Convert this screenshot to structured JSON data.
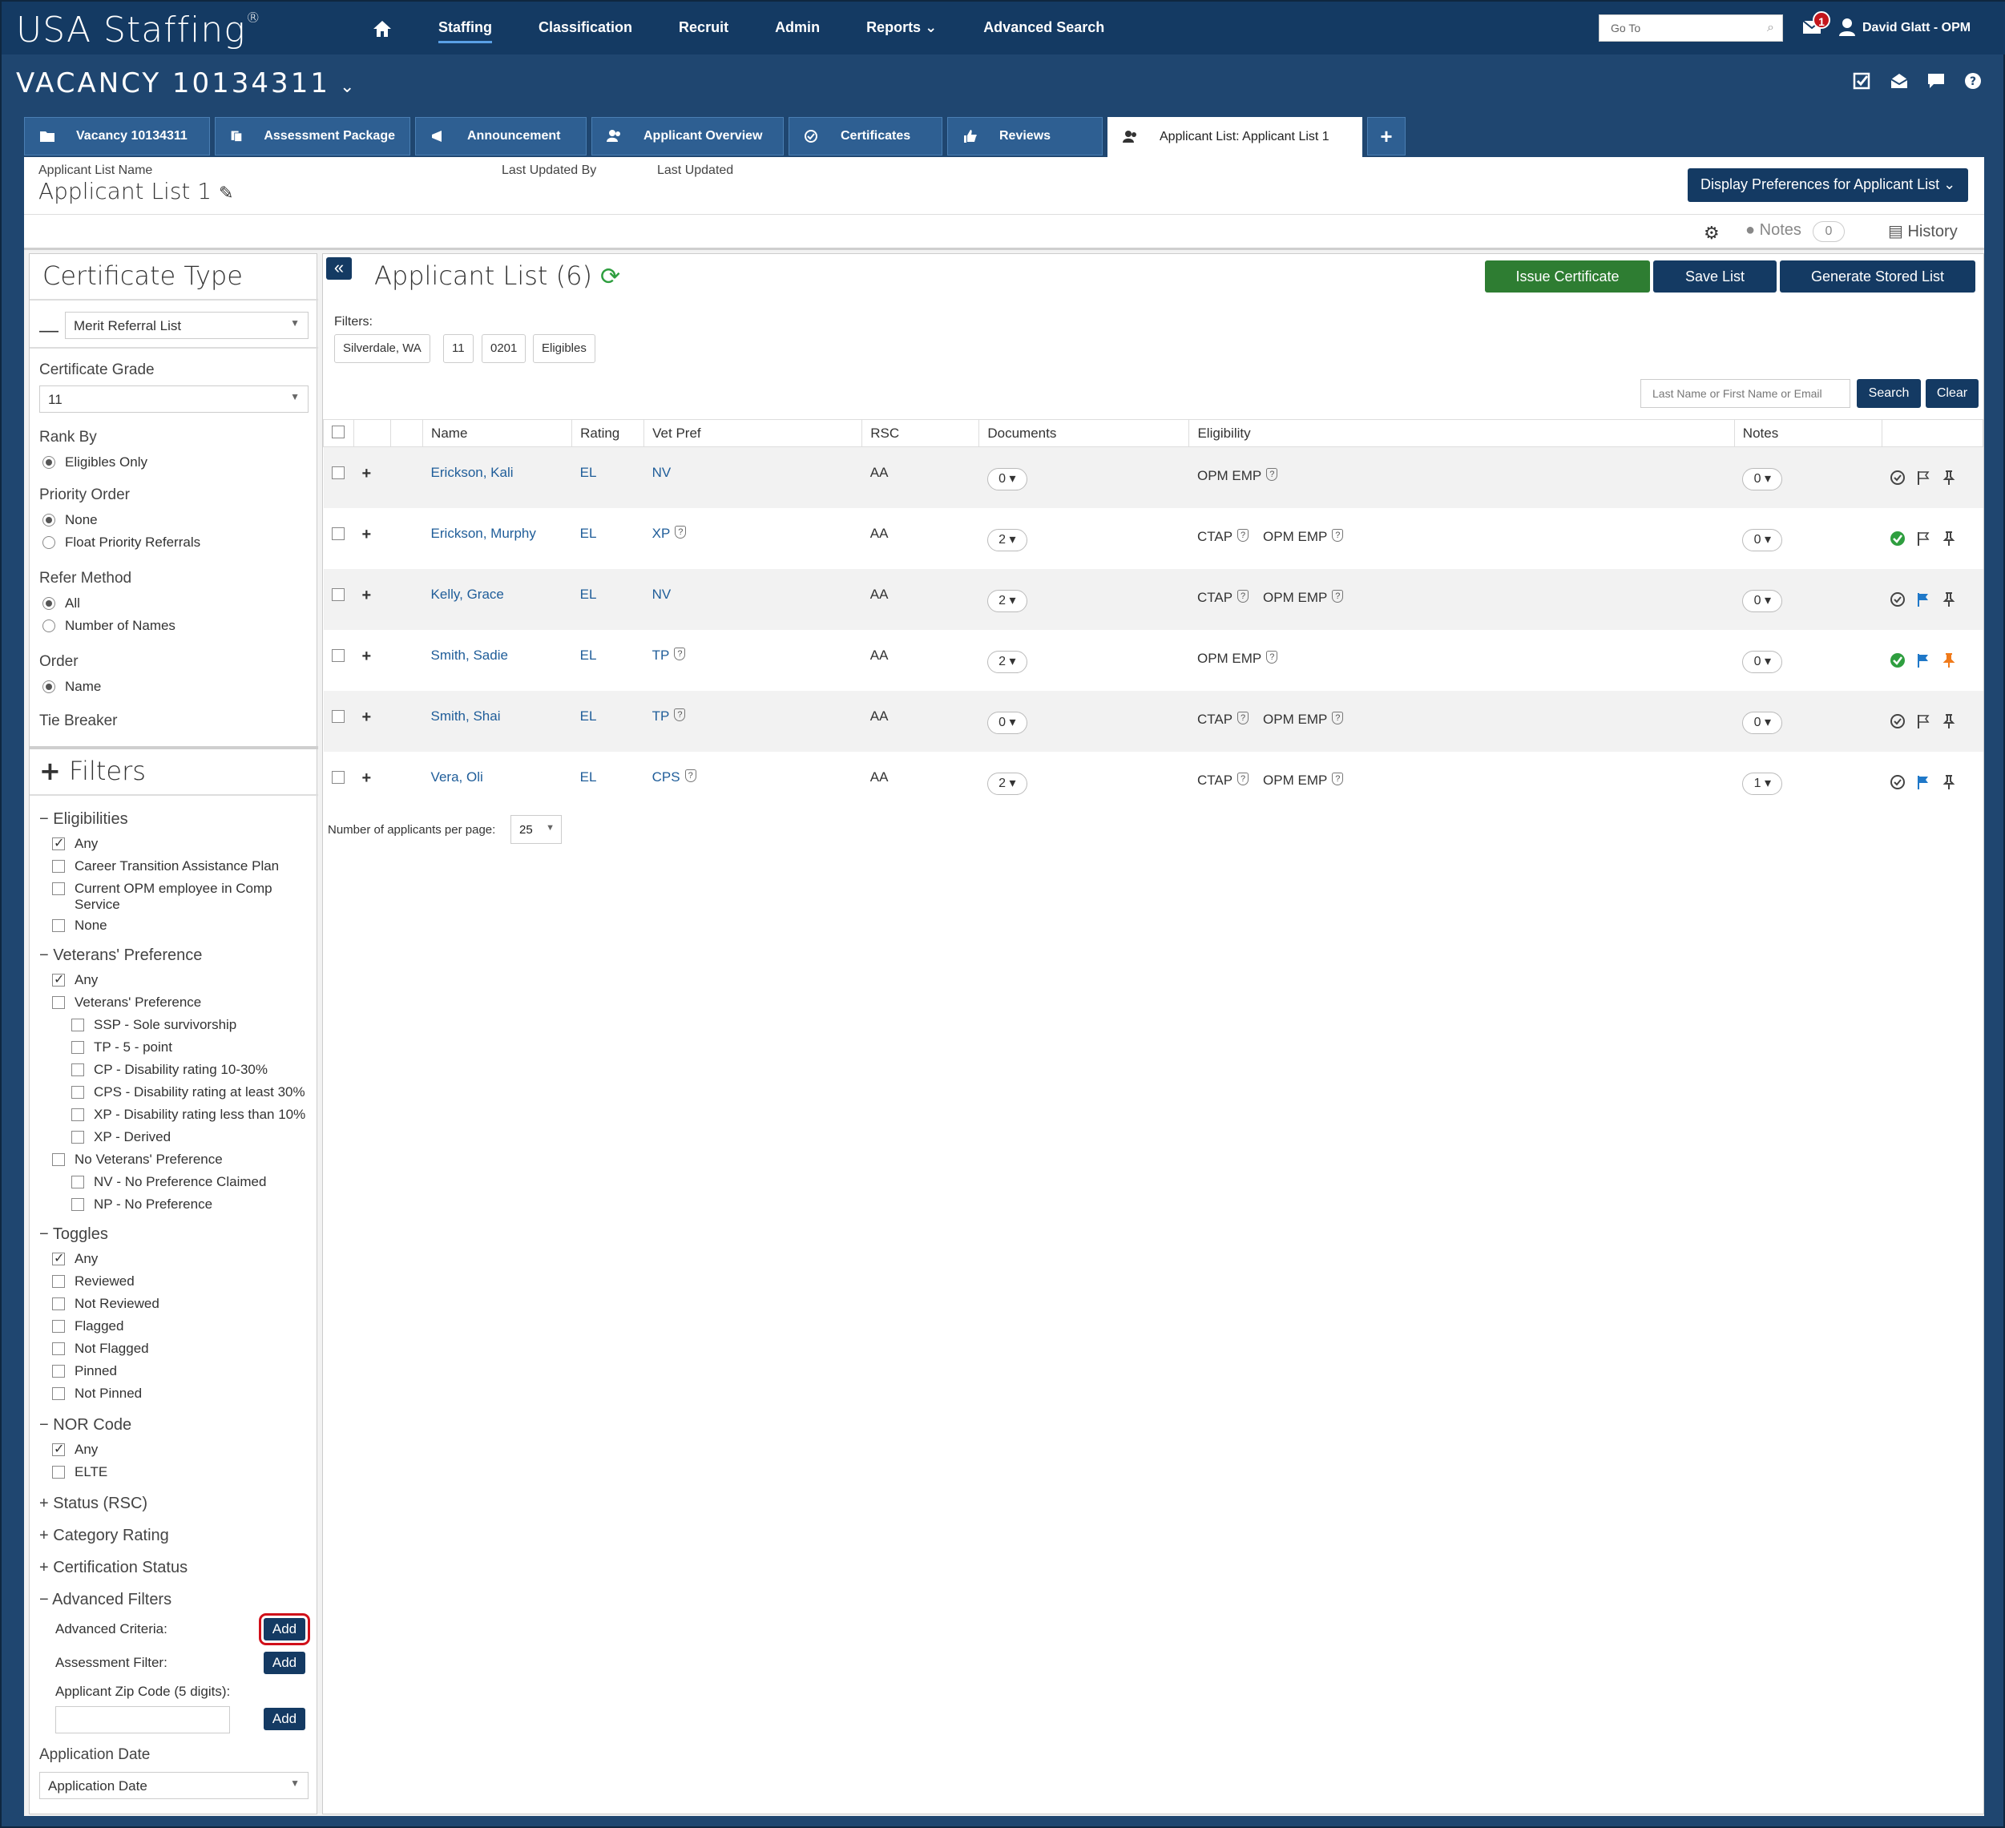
{
  "nav": {
    "logo": "USA Staffing",
    "logo_mark": "®",
    "links": [
      "Staffing",
      "Classification",
      "Recruit",
      "Admin",
      "Reports",
      "Advanced Search"
    ],
    "reports_caret": "⌄",
    "goto_placeholder": "Go To",
    "mail_badge": "1",
    "user": "David Glatt - OPM"
  },
  "vacancy": {
    "title": "VACANCY 10134311"
  },
  "tabs": [
    "Vacancy 10134311",
    "Assessment Package",
    "Announcement",
    "Applicant Overview",
    "Certificates",
    "Reviews",
    "Applicant List: Applicant List 1"
  ],
  "info": {
    "list_name_label": "Applicant List Name",
    "list_name": "Applicant List 1",
    "last_updated_by_label": "Last Updated By",
    "last_updated_label": "Last Updated",
    "display_prefs": "Display Preferences for Applicant List"
  },
  "toolbar": {
    "notes": "Notes",
    "notes_count": "0",
    "history": "History"
  },
  "sidebar": {
    "cert_type_title": "Certificate Type",
    "cert_type_value": "Merit Referral List",
    "grade_label": "Certificate Grade",
    "grade_value": "11",
    "rank_by_label": "Rank By",
    "rank_by_option": "Eligibles Only",
    "priority_label": "Priority Order",
    "priority_options": [
      "None",
      "Float Priority Referrals"
    ],
    "refer_label": "Refer Method",
    "refer_options": [
      "All",
      "Number of Names"
    ],
    "order_label": "Order",
    "order_option": "Name",
    "tie_breaker": "Tie Breaker",
    "filters_title": "Filters",
    "eligibilities": {
      "title": "Eligibilities",
      "items": [
        "Any",
        "Career Transition Assistance Plan",
        "Current OPM employee in Comp Service",
        "None"
      ]
    },
    "vets": {
      "title": "Veterans' Preference",
      "items": [
        "Any",
        "Veterans' Preference",
        "SSP - Sole survivorship",
        "TP - 5 - point",
        "CP - Disability rating 10-30%",
        "CPS - Disability rating at least 30%",
        "XP - Disability rating less than 10%",
        "XP - Derived",
        "No Veterans' Preference",
        "NV - No Preference Claimed",
        "NP - No Preference"
      ]
    },
    "toggles": {
      "title": "Toggles",
      "items": [
        "Any",
        "Reviewed",
        "Not Reviewed",
        "Flagged",
        "Not Flagged",
        "Pinned",
        "Not Pinned"
      ]
    },
    "nor": {
      "title": "NOR Code",
      "items": [
        "Any",
        "ELTE"
      ]
    },
    "collapsed": [
      "Status (RSC)",
      "Category Rating",
      "Certification Status"
    ],
    "advanced": {
      "title": "Advanced Filters",
      "criteria_label": "Advanced Criteria:",
      "assessment_label": "Assessment Filter:",
      "zip_label": "Applicant Zip Code (5 digits):",
      "add": "Add"
    },
    "app_date_label": "Application Date",
    "app_date_value": "Application Date"
  },
  "content": {
    "title": "Applicant List (6)",
    "buttons": {
      "issue": "Issue Certificate",
      "save": "Save List",
      "generate": "Generate Stored List"
    },
    "filters_label": "Filters:",
    "chips": [
      "Silverdale, WA",
      "11",
      "0201",
      "Eligibles"
    ],
    "search_placeholder": "Last Name or First Name or Email",
    "search": "Search",
    "clear": "Clear",
    "columns": [
      "Name",
      "Rating",
      "Vet Pref",
      "RSC",
      "Documents",
      "Eligibility",
      "Notes"
    ],
    "rows": [
      {
        "name": "Erickson, Kali",
        "rating": "EL",
        "vet": "NV",
        "rsc": "AA",
        "docs": "0",
        "elig": [
          "OPM EMP"
        ],
        "notes": "0",
        "reviewed": false,
        "flagged": false,
        "pinned": false
      },
      {
        "name": "Erickson, Murphy",
        "rating": "EL",
        "vet": "XP",
        "rsc": "AA",
        "docs": "2",
        "elig": [
          "CTAP",
          "OPM EMP"
        ],
        "notes": "0",
        "reviewed": true,
        "flagged": false,
        "pinned": false
      },
      {
        "name": "Kelly, Grace",
        "rating": "EL",
        "vet": "NV",
        "rsc": "AA",
        "docs": "2",
        "elig": [
          "CTAP",
          "OPM EMP"
        ],
        "notes": "0",
        "reviewed": false,
        "flagged": true,
        "pinned": false
      },
      {
        "name": "Smith, Sadie",
        "rating": "EL",
        "vet": "TP",
        "rsc": "AA",
        "docs": "2",
        "elig": [
          "OPM EMP"
        ],
        "notes": "0",
        "reviewed": true,
        "flagged": true,
        "pinned": true
      },
      {
        "name": "Smith, Shai",
        "rating": "EL",
        "vet": "TP",
        "rsc": "AA",
        "docs": "0",
        "elig": [
          "CTAP",
          "OPM EMP"
        ],
        "notes": "0",
        "reviewed": false,
        "flagged": false,
        "pinned": false
      },
      {
        "name": "Vera, Oli",
        "rating": "EL",
        "vet": "CPS",
        "rsc": "AA",
        "docs": "2",
        "elig": [
          "CTAP",
          "OPM EMP"
        ],
        "notes": "1",
        "reviewed": false,
        "flagged": true,
        "pinned": false
      }
    ],
    "per_page_label": "Number of applicants per page:",
    "per_page": "25"
  },
  "colors": {
    "navy": "#143a63",
    "green": "#2e7d32",
    "check_green": "#2e9e3f",
    "flag_blue": "#1f78c8",
    "pin_orange": "#f07a1a",
    "highlight": "#d0101a"
  }
}
